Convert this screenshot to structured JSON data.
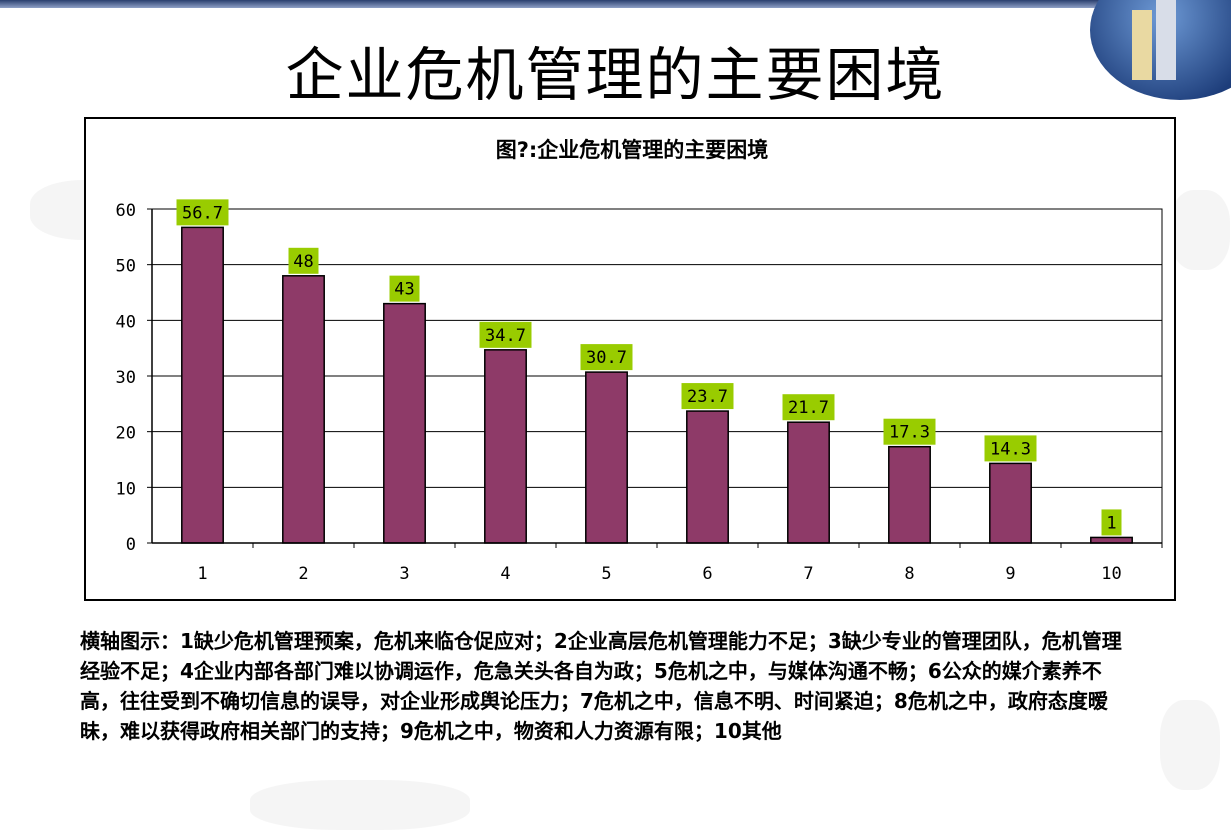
{
  "page": {
    "title": "企业危机管理的主要困境",
    "caption": "横轴图示：1缺少危机管理预案，危机来临仓促应对；2企业高层危机管理能力不足；3缺少专业的管理团队，危机管理经验不足；4企业内部各部门难以协调运作，危急关头各自为政；5危机之中，与媒体沟通不畅；6公众的媒介素养不高，往往受到不确切信息的误导，对企业形成舆论压力；7危机之中，信息不明、时间紧迫；8危机之中，政府态度暧昧，难以获得政府相关部门的支持；9危机之中，物资和人力资源有限；10其他"
  },
  "chart_data": {
    "type": "bar",
    "title": "图?:企业危机管理的主要困境",
    "categories": [
      "1",
      "2",
      "3",
      "4",
      "5",
      "6",
      "7",
      "8",
      "9",
      "10"
    ],
    "values": [
      56.7,
      48,
      43,
      34.7,
      30.7,
      23.7,
      21.7,
      17.3,
      14.3,
      1
    ],
    "data_labels": [
      "56.7",
      "48",
      "43",
      "34.7",
      "30.7",
      "23.7",
      "21.7",
      "17.3",
      "14.3",
      "1"
    ],
    "xlabel": "",
    "ylabel": "",
    "ylim": [
      0,
      60
    ],
    "yticks": [
      0,
      10,
      20,
      30,
      40,
      50,
      60
    ],
    "grid": true,
    "legend": "none",
    "colors": {
      "bar_fill": "#8E3A68",
      "bar_stroke": "#000000",
      "label_bg": "#99CC00",
      "grid": "#000000"
    }
  }
}
